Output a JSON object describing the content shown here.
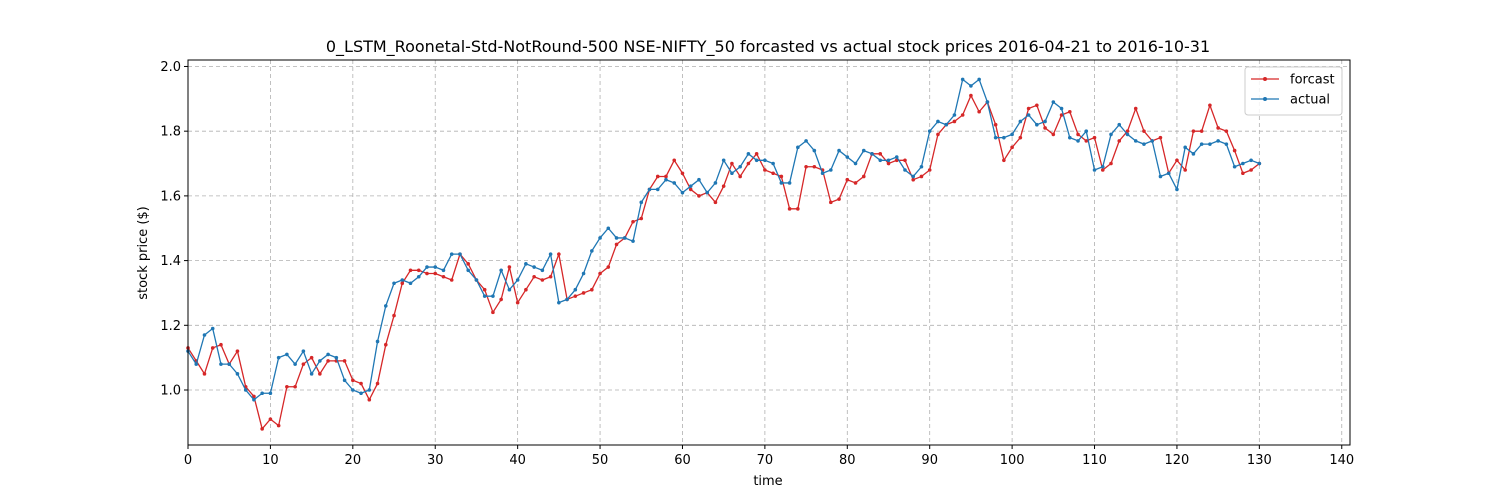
{
  "chart_data": {
    "type": "line",
    "title": "0_LSTM_Roonetal-Std-NotRound-500 NSE-NIFTY_50 forcasted vs actual stock prices 2016-04-21 to 2016-10-31",
    "xlabel": "time",
    "ylabel": "stock price ($)",
    "xlim": [
      0,
      141
    ],
    "ylim": [
      0.83,
      2.02
    ],
    "xticks": [
      0,
      10,
      20,
      30,
      40,
      50,
      60,
      70,
      80,
      90,
      100,
      110,
      120,
      130,
      140
    ],
    "yticks": [
      1.0,
      1.2,
      1.4,
      1.6,
      1.8,
      2.0
    ],
    "ytick_labels": [
      "1.0",
      "1.2",
      "1.4",
      "1.6",
      "1.8",
      "2.0"
    ],
    "grid": true,
    "legend_position": "top-right",
    "series": [
      {
        "name": "forcast",
        "color": "#d62728",
        "values": [
          1.13,
          1.09,
          1.05,
          1.13,
          1.14,
          1.08,
          1.12,
          1.01,
          0.98,
          0.88,
          0.91,
          0.89,
          1.01,
          1.01,
          1.08,
          1.1,
          1.05,
          1.09,
          1.09,
          1.09,
          1.03,
          1.02,
          0.97,
          1.02,
          1.14,
          1.23,
          1.33,
          1.37,
          1.37,
          1.36,
          1.36,
          1.35,
          1.34,
          1.42,
          1.39,
          1.34,
          1.31,
          1.24,
          1.28,
          1.38,
          1.27,
          1.31,
          1.35,
          1.34,
          1.35,
          1.42,
          1.28,
          1.29,
          1.3,
          1.31,
          1.36,
          1.38,
          1.45,
          1.47,
          1.52,
          1.53,
          1.62,
          1.66,
          1.66,
          1.71,
          1.67,
          1.62,
          1.6,
          1.61,
          1.58,
          1.63,
          1.7,
          1.66,
          1.7,
          1.73,
          1.68,
          1.67,
          1.66,
          1.56,
          1.56,
          1.69,
          1.69,
          1.68,
          1.58,
          1.59,
          1.65,
          1.64,
          1.66,
          1.73,
          1.73,
          1.7,
          1.71,
          1.71,
          1.65,
          1.66,
          1.68,
          1.79,
          1.82,
          1.83,
          1.85,
          1.91,
          1.86,
          1.89,
          1.82,
          1.71,
          1.75,
          1.78,
          1.87,
          1.88,
          1.81,
          1.79,
          1.85,
          1.86,
          1.79,
          1.77,
          1.78,
          1.68,
          1.7,
          1.77,
          1.8,
          1.87,
          1.8,
          1.77,
          1.78,
          1.67,
          1.71,
          1.68,
          1.8,
          1.8,
          1.88,
          1.81,
          1.8,
          1.74,
          1.67,
          1.68,
          1.7
        ]
      },
      {
        "name": "actual",
        "color": "#1f77b4",
        "values": [
          1.12,
          1.08,
          1.17,
          1.19,
          1.08,
          1.08,
          1.05,
          1.0,
          0.97,
          0.99,
          0.99,
          1.1,
          1.11,
          1.08,
          1.12,
          1.05,
          1.09,
          1.11,
          1.1,
          1.03,
          1.0,
          0.99,
          1.0,
          1.15,
          1.26,
          1.33,
          1.34,
          1.33,
          1.35,
          1.38,
          1.38,
          1.37,
          1.42,
          1.42,
          1.37,
          1.34,
          1.29,
          1.29,
          1.37,
          1.31,
          1.34,
          1.39,
          1.38,
          1.37,
          1.42,
          1.27,
          1.28,
          1.31,
          1.36,
          1.43,
          1.47,
          1.5,
          1.47,
          1.47,
          1.46,
          1.58,
          1.62,
          1.62,
          1.65,
          1.64,
          1.61,
          1.63,
          1.65,
          1.61,
          1.64,
          1.71,
          1.67,
          1.69,
          1.73,
          1.71,
          1.71,
          1.7,
          1.64,
          1.64,
          1.75,
          1.77,
          1.74,
          1.67,
          1.68,
          1.74,
          1.72,
          1.7,
          1.74,
          1.73,
          1.71,
          1.71,
          1.72,
          1.68,
          1.66,
          1.69,
          1.8,
          1.83,
          1.82,
          1.85,
          1.96,
          1.94,
          1.96,
          1.89,
          1.78,
          1.78,
          1.79,
          1.83,
          1.85,
          1.82,
          1.83,
          1.89,
          1.87,
          1.78,
          1.77,
          1.8,
          1.68,
          1.69,
          1.79,
          1.82,
          1.79,
          1.77,
          1.76,
          1.77,
          1.66,
          1.67,
          1.62,
          1.75,
          1.73,
          1.76,
          1.76,
          1.77,
          1.76,
          1.69,
          1.7,
          1.71,
          1.7
        ]
      }
    ]
  }
}
